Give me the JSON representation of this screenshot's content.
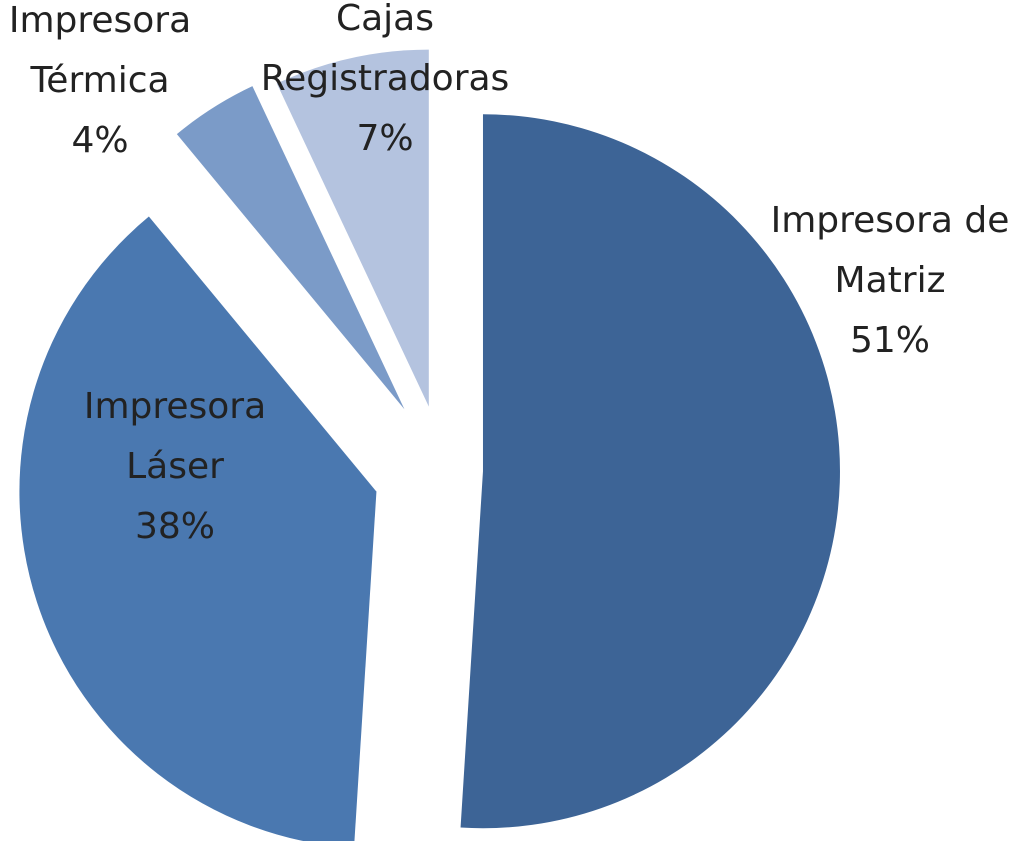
{
  "chart_data": {
    "type": "pie",
    "categories": [
      "Impresora de\nMatriz",
      "Impresora\nLáser",
      "Impresora\nTérmica",
      "Cajas\nRegistradoras"
    ],
    "values": [
      51,
      38,
      4,
      7
    ],
    "value_labels": [
      "51%",
      "38%",
      "4%",
      "7%"
    ],
    "colors": [
      "#3d6496",
      "#4a78b0",
      "#7b9bc8",
      "#b4c3df"
    ]
  }
}
